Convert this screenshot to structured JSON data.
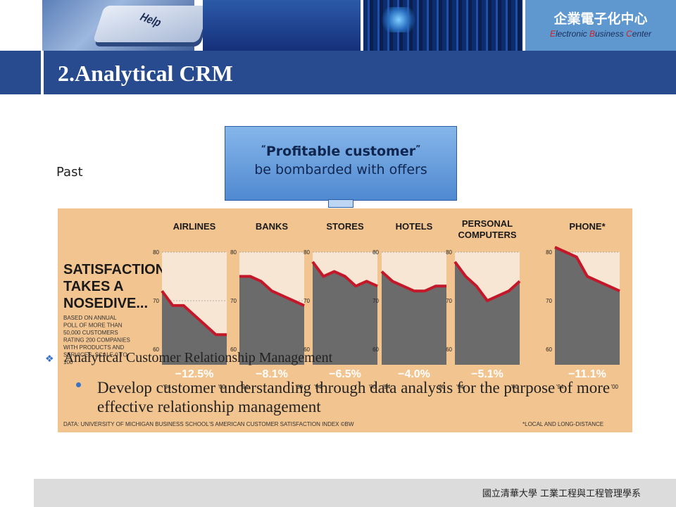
{
  "header": {
    "key_label": "Help",
    "center_name_zh": "企業電子化中心",
    "center_name_en_parts": [
      "E",
      "lectronic ",
      "B",
      "usiness ",
      "C",
      "enter"
    ],
    "colors": {
      "accent": "#284b8f",
      "brand": "#5f97cf"
    }
  },
  "slide": {
    "title": "2.Analytical CRM",
    "past_label": "Past"
  },
  "callout": {
    "open_quote": "“",
    "line1": "Profitable customer",
    "close_quote": "”",
    "line2": "be bombarded with offers"
  },
  "figure": {
    "headline": [
      "SATISFACTION",
      "TAKES A",
      "NOSEDIVE..."
    ],
    "note": [
      "BASED ON ANNUAL",
      "POLL OF MORE THAN",
      "50,000 CUSTOMERS",
      "RATING 200 COMPANIES",
      "WITH PRODUCTS AND",
      "SERVICES. SCALE 0 TO",
      "100"
    ],
    "source": "DATA: UNIVERSITY OF MICHIGAN BUSINESS SCHOOL'S AMERICAN CUSTOMER SATISFACTION INDEX ©BW",
    "footnote": "*LOCAL AND LONG-DISTANCE"
  },
  "chart_data": {
    "type": "area",
    "ylim": [
      60,
      80
    ],
    "yticks": [
      "60",
      "70",
      "80"
    ],
    "x_labels": [
      "'94",
      "'00"
    ],
    "title": "SATISFACTION TAKES A NOSEDIVE...",
    "panels": [
      {
        "name": "AIRLINES",
        "change": "−12.5%",
        "x": [
          1994,
          1995,
          1996,
          1997,
          1998,
          1999,
          2000
        ],
        "values": [
          72,
          69,
          69,
          67,
          65,
          63,
          63
        ]
      },
      {
        "name": "BANKS",
        "change": "−8.1%",
        "x": [
          1994,
          1995,
          1996,
          1997,
          1998,
          1999,
          2000
        ],
        "values": [
          75,
          75,
          74,
          72,
          71,
          70,
          69
        ]
      },
      {
        "name": "STORES",
        "change": "−6.5%",
        "x": [
          1994,
          1995,
          1996,
          1997,
          1998,
          1999,
          2000
        ],
        "values": [
          78,
          75,
          76,
          75,
          73,
          74,
          73
        ]
      },
      {
        "name": "HOTELS",
        "change": "−4.0%",
        "x": [
          1994,
          1995,
          1996,
          1997,
          1998,
          1999,
          2000
        ],
        "values": [
          76,
          74,
          73,
          72,
          72,
          73,
          73
        ]
      },
      {
        "name": "PERSONAL COMPUTERS",
        "change": "−5.1%",
        "x": [
          1994,
          1995,
          1996,
          1997,
          1998,
          1999,
          2000
        ],
        "values": [
          78,
          75,
          73,
          70,
          71,
          72,
          74
        ]
      },
      {
        "name": "PHONE*",
        "change": "−11.1%",
        "x": [
          1994,
          1995,
          1996,
          1997,
          1998,
          1999,
          2000
        ],
        "values": [
          81,
          80,
          79,
          75,
          74,
          73,
          72
        ]
      }
    ]
  },
  "bullets": {
    "level1": "Analytical Customer Relationship Management",
    "level2": "Develop customer understanding through data analysis for the purpose of more effective relationship management"
  },
  "footer": {
    "text": "國立清華大學 工業工程與工程管理學系"
  }
}
